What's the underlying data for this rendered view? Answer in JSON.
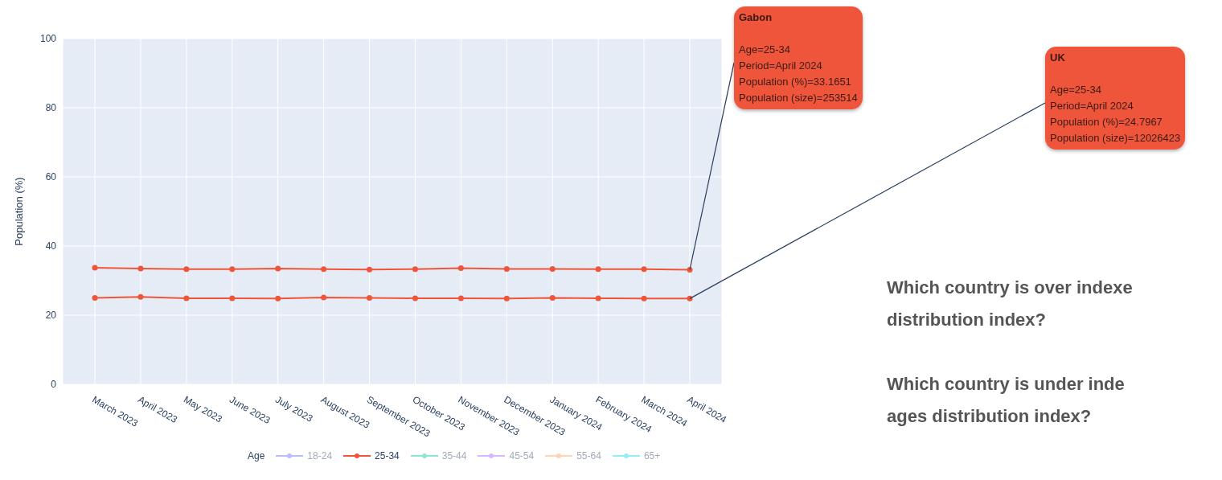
{
  "chart_data": {
    "type": "line",
    "ylabel": "Population (%)",
    "legend_title": "Age",
    "legend": "bottom",
    "grid": true,
    "marker": "circle",
    "line_style": "solid",
    "categories": [
      "March 2023",
      "April 2023",
      "May 2023",
      "June 2023",
      "July 2023",
      "August 2023",
      "September 2023",
      "October 2023",
      "November 2023",
      "December 2023",
      "January 2024",
      "February 2024",
      "March 2024",
      "April 2024"
    ],
    "ylim": [
      0,
      100
    ],
    "yticks": [
      0,
      20,
      40,
      60,
      80,
      100
    ],
    "series": [
      {
        "name": "18-24",
        "color": "#636efa",
        "values": [
          null,
          null,
          null,
          null,
          null,
          null,
          null,
          null,
          null,
          null,
          null,
          null,
          null,
          null
        ]
      },
      {
        "name": "25-34",
        "color": "#ef553b",
        "values": [
          33.7,
          33.5,
          33.3,
          33.3,
          33.5,
          33.3,
          33.2,
          33.3,
          33.6,
          33.4,
          33.4,
          33.3,
          33.3,
          33.1651
        ]
      },
      {
        "color": "#ef553b",
        "values": [
          25.0,
          25.3,
          24.9,
          24.9,
          24.8,
          25.1,
          25.0,
          24.9,
          24.9,
          24.8,
          25.0,
          24.9,
          24.8,
          24.7967
        ]
      },
      {
        "name": "35-44",
        "color": "#00cc96",
        "values": [
          null,
          null,
          null,
          null,
          null,
          null,
          null,
          null,
          null,
          null,
          null,
          null,
          null,
          null
        ]
      },
      {
        "name": "45-54",
        "color": "#ab63fa",
        "values": [
          null,
          null,
          null,
          null,
          null,
          null,
          null,
          null,
          null,
          null,
          null,
          null,
          null,
          null
        ]
      },
      {
        "name": "55-64",
        "color": "#ffa15a",
        "values": [
          null,
          null,
          null,
          null,
          null,
          null,
          null,
          null,
          null,
          null,
          null,
          null,
          null,
          null
        ]
      },
      {
        "name": "65+",
        "color": "#19d3f3",
        "values": [
          null,
          null,
          null,
          null,
          null,
          null,
          null,
          null,
          null,
          null,
          null,
          null,
          null,
          null
        ]
      }
    ],
    "annotations": [
      "Gabon\n\nAge=25-34\nPeriod=April 2024\nPopulation (%)=33.1651\nPopulation (size)=253514",
      "UK\n\nAge=25-34\nPeriod=April 2024\nPopulation (%)=24.7967\nPopulation (size)=12026423",
      "Which country is over indexe\ndistribution index?\n\nWhich country is under inde\nages distribution index?"
    ]
  }
}
